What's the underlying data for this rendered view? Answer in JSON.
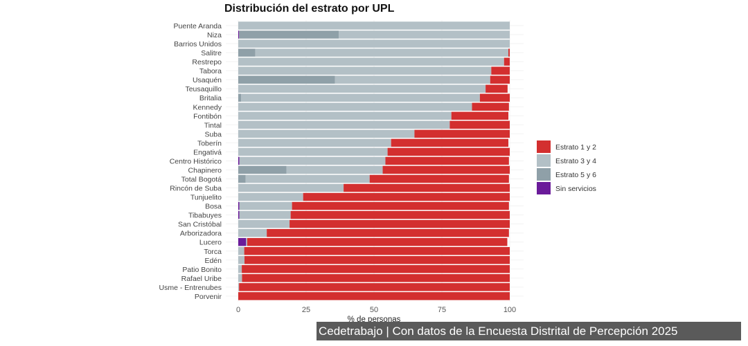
{
  "chart_data": {
    "type": "bar",
    "orientation": "horizontal",
    "stacked": true,
    "title": "Distribución del estrato por UPL",
    "xlabel": "% de personas",
    "ylabel": "",
    "xlim": [
      0,
      100
    ],
    "xticks": [
      0,
      25,
      50,
      75,
      100
    ],
    "grid": true,
    "legend_position": "right",
    "categories": [
      "Puente Aranda",
      "Niza",
      "Barrios Unidos",
      "Salitre",
      "Restrepo",
      "Tabora",
      "Usaquén",
      "Teusaquillo",
      "Britalia",
      "Kennedy",
      "Fontibón",
      "Tintal",
      "Suba",
      "Toberín",
      "Engativá",
      "Centro Histórico",
      "Chapinero",
      "Total Bogotá",
      "Rincón de Suba",
      "Tunjuelito",
      "Bosa",
      "Tibabuyes",
      "San Cristóbal",
      "Arborizadora",
      "Lucero",
      "Torca",
      "Edén",
      "Patio Bonito",
      "Rafael Uribe",
      "Usme - Entrenubes",
      "Porvenir"
    ],
    "series": [
      {
        "name": "Sin servicios",
        "color": "#6a1b9a",
        "values": [
          0,
          0.3,
          0,
          0,
          0,
          0,
          0,
          0,
          0,
          0,
          0,
          0,
          0,
          0,
          0,
          0.4,
          0,
          0,
          0,
          0,
          0.4,
          0.4,
          0,
          0,
          2.9,
          0,
          0,
          0,
          0,
          0,
          0
        ]
      },
      {
        "name": "Estrato 5 y 6",
        "color": "#8fa0a8",
        "values": [
          0,
          36.7,
          0,
          6.3,
          0,
          0,
          35.6,
          0,
          1.1,
          0,
          0,
          0,
          0,
          0,
          0,
          0,
          17.8,
          2.7,
          0,
          0,
          0,
          0,
          0,
          0,
          0,
          0,
          0,
          0,
          0,
          0,
          0
        ]
      },
      {
        "name": "Estrato 3 y 4",
        "color": "#b3c0c6",
        "values": [
          100,
          63.0,
          100,
          93.2,
          97.9,
          93.2,
          57.2,
          91.1,
          87.9,
          86.1,
          78.5,
          77.9,
          64.9,
          56.3,
          55.0,
          53.8,
          35.4,
          45.7,
          38.8,
          23.9,
          19.4,
          18.9,
          18.9,
          10.5,
          0.4,
          2.2,
          2.3,
          1.3,
          1.4,
          0.3,
          0
        ]
      },
      {
        "name": "Estrato 1 y 2",
        "color": "#d32f2f",
        "values": [
          0,
          0,
          0,
          0.5,
          2.1,
          6.8,
          7.2,
          8.1,
          11.0,
          13.6,
          21.0,
          22.1,
          35.1,
          43.2,
          45.0,
          45.5,
          46.8,
          51.3,
          61.2,
          76.1,
          79.9,
          80.7,
          81.1,
          89.2,
          95.8,
          97.8,
          97.7,
          98.7,
          98.6,
          99.7,
          100
        ]
      }
    ],
    "legend_order": [
      "Estrato 1 y 2",
      "Estrato 3 y 4",
      "Estrato 5 y 6",
      "Sin servicios"
    ]
  },
  "footer": {
    "caption": "Cedetrabajo | Con datos de la Encuesta Distrital de Percepción 2025"
  }
}
